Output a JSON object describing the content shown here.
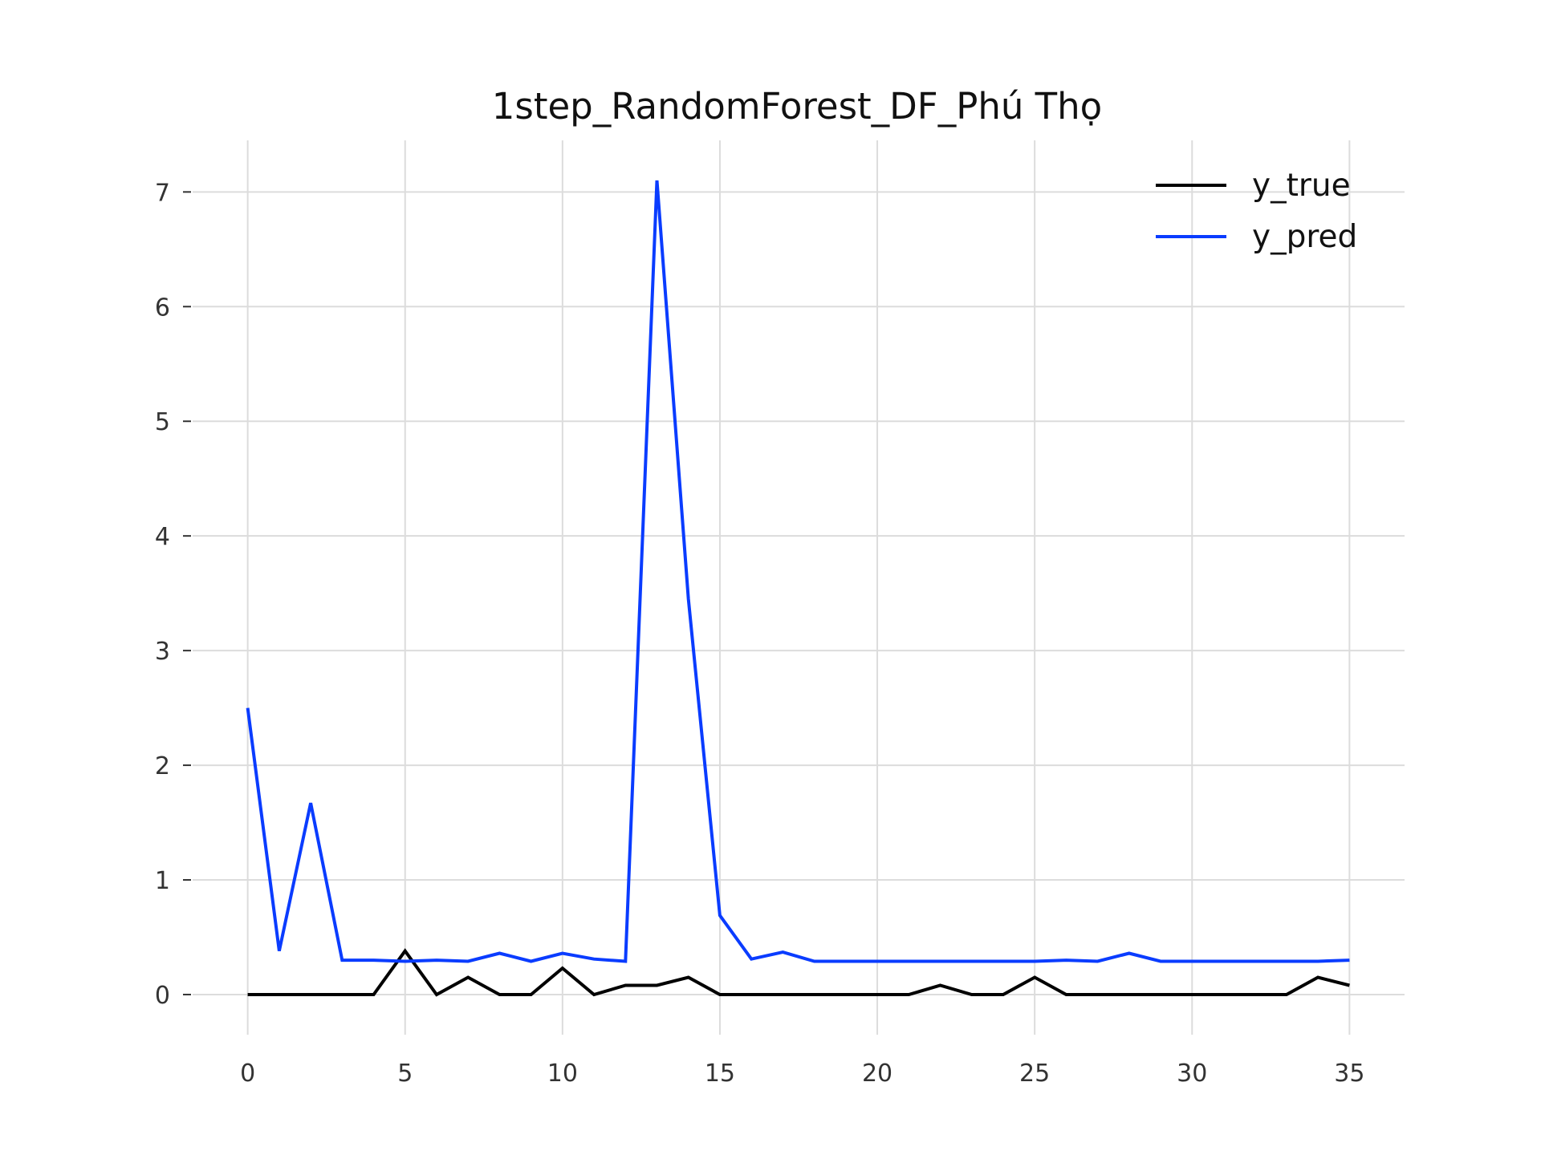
{
  "chart_data": {
    "type": "line",
    "title": "1step_RandomForest_DF_Phú Thọ",
    "xlabel": "",
    "ylabel": "",
    "xlim": [
      -1.75,
      36.75
    ],
    "ylim": [
      -0.35,
      7.45
    ],
    "xticks": [
      0,
      5,
      10,
      15,
      20,
      25,
      30,
      35
    ],
    "yticks": [
      0,
      1,
      2,
      3,
      4,
      5,
      6,
      7
    ],
    "grid": true,
    "legend_position": "top-right",
    "x": [
      0,
      1,
      2,
      3,
      4,
      5,
      6,
      7,
      8,
      9,
      10,
      11,
      12,
      13,
      14,
      15,
      16,
      17,
      18,
      19,
      20,
      21,
      22,
      23,
      24,
      25,
      26,
      27,
      28,
      29,
      30,
      31,
      32,
      33,
      34,
      35
    ],
    "series": [
      {
        "name": "y_true",
        "color": "#000000",
        "values": [
          0,
          0,
          0,
          0,
          0,
          0.38,
          0,
          0.15,
          0,
          0,
          0.23,
          0,
          0.08,
          0.08,
          0.15,
          0,
          0,
          0,
          0,
          0,
          0,
          0,
          0.08,
          0,
          0,
          0.15,
          0,
          0,
          0,
          0,
          0,
          0,
          0,
          0,
          0.15,
          0.08
        ]
      },
      {
        "name": "y_pred",
        "color": "#0a3cff",
        "values": [
          2.5,
          0.38,
          1.67,
          0.3,
          0.3,
          0.29,
          0.3,
          0.29,
          0.36,
          0.29,
          0.36,
          0.31,
          0.29,
          7.1,
          3.45,
          0.69,
          0.31,
          0.37,
          0.29,
          0.29,
          0.29,
          0.29,
          0.29,
          0.29,
          0.29,
          0.29,
          0.3,
          0.29,
          0.36,
          0.29,
          0.29,
          0.29,
          0.29,
          0.29,
          0.29,
          0.3
        ]
      }
    ]
  }
}
